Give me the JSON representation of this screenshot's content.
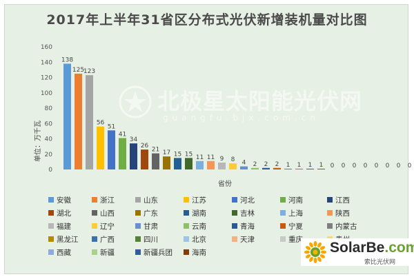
{
  "chart_data": {
    "type": "bar",
    "title": "2017年上半年31省区分布式光伏新增装机量对比图",
    "xlabel": "省份",
    "ylabel": "单位：万千瓦",
    "ylim": [
      0,
      160
    ],
    "yticks": [
      0,
      20,
      40,
      60,
      80,
      100,
      120,
      140,
      160
    ],
    "grid": false,
    "legend_position": "bottom",
    "categories": [
      "安徽",
      "浙江",
      "山东",
      "江苏",
      "河北",
      "河南",
      "江西",
      "湖北",
      "山西",
      "广东",
      "湖南",
      "吉林",
      "上海",
      "陕西",
      "福建",
      "辽宁",
      "甘肃",
      "云南",
      "青海",
      "宁夏",
      "内蒙古",
      "黑龙江",
      "广西",
      "四川",
      "北京",
      "天津",
      "重庆",
      "贵州",
      "西藏",
      "新疆",
      "新疆兵团",
      "海南"
    ],
    "values": [
      138,
      125,
      123,
      56,
      51,
      41,
      34,
      26,
      21,
      17,
      15,
      15,
      11,
      11,
      9,
      8,
      4,
      2,
      2,
      2,
      1,
      1,
      1,
      1,
      0,
      0,
      0,
      0,
      0,
      0,
      0,
      0
    ],
    "value_labels": [
      "138",
      "125",
      "123",
      "56",
      "51",
      "41",
      "34",
      "26",
      "21",
      "17",
      "15",
      "15",
      "11",
      "11",
      "9",
      "8",
      "4",
      "2",
      "2",
      "2",
      "1",
      "1",
      "1",
      "1",
      "0",
      "0",
      "0",
      "0",
      "0",
      "0",
      "0",
      "0"
    ],
    "colors": [
      "#5b9bd5",
      "#ed7d31",
      "#a5a5a5",
      "#ffc000",
      "#4472c4",
      "#70ad47",
      "#264478",
      "#9e480e",
      "#636363",
      "#997300",
      "#255e91",
      "#43682b",
      "#7cafdd",
      "#f1975a",
      "#b7b7b7",
      "#ffcd33",
      "#698ed0",
      "#8cc168",
      "#2e5a92",
      "#c55a11",
      "#7f7f7f",
      "#b38b00",
      "#3a6fb0",
      "#548235",
      "#9dc3e6",
      "#f4b183",
      "#c9c9c9",
      "#ffd966",
      "#8faadc",
      "#a9d18e",
      "#335aa1",
      "#843c0c"
    ]
  },
  "watermark": {
    "main": "北极星太阳能光伏网",
    "sub": "guangfu.bjx.com.cn"
  },
  "brand": {
    "name": "SolarBe",
    "suffix": ".com",
    "sub": "索比光伏网"
  }
}
